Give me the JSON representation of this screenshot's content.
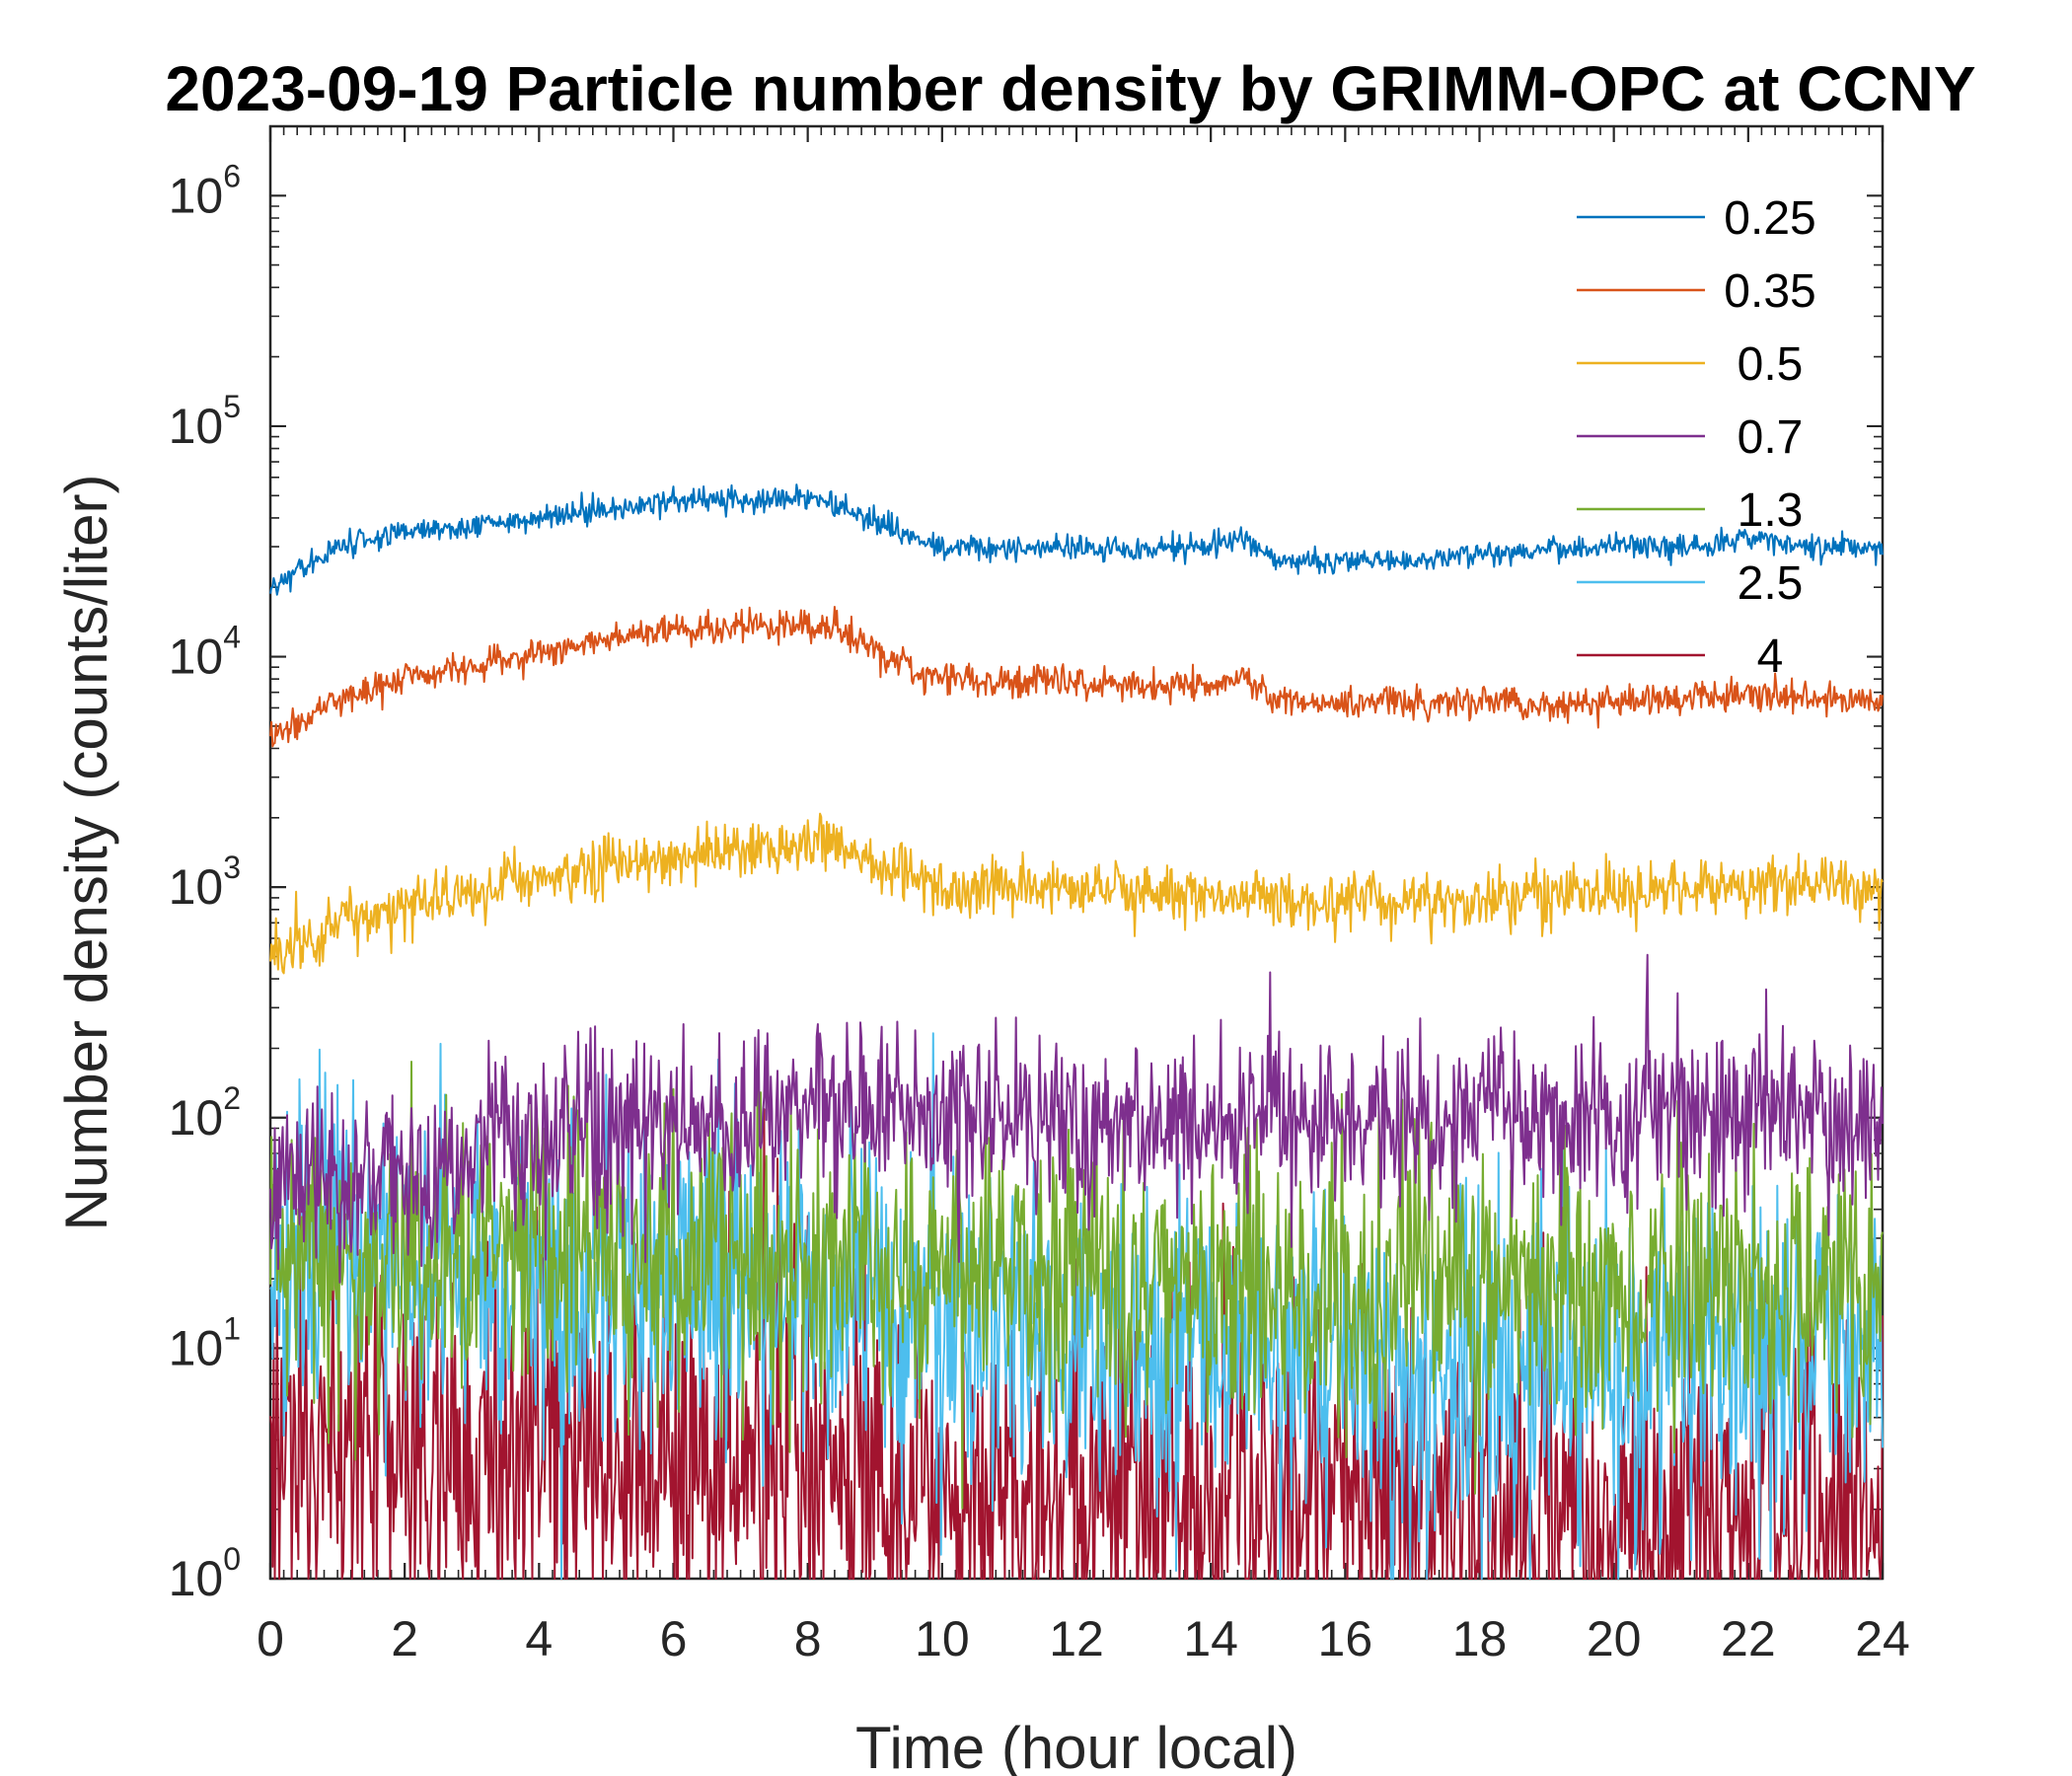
{
  "chart_data": {
    "type": "line",
    "title": "2023-09-19 Particle number density by GRIMM-OPC at CCNY",
    "xlabel": "Time (hour local)",
    "ylabel": "Number density (counts/liter)",
    "xlim": [
      0,
      24
    ],
    "ylim": [
      1,
      2000000
    ],
    "yscale": "log",
    "x_ticks": [
      0,
      2,
      4,
      6,
      8,
      10,
      12,
      14,
      16,
      18,
      20,
      22,
      24
    ],
    "y_ticks": [
      {
        "value": 1,
        "base": "10",
        "exp": "0"
      },
      {
        "value": 10,
        "base": "10",
        "exp": "1"
      },
      {
        "value": 100,
        "base": "10",
        "exp": "2"
      },
      {
        "value": 1000,
        "base": "10",
        "exp": "3"
      },
      {
        "value": 10000,
        "base": "10",
        "exp": "4"
      },
      {
        "value": 100000,
        "base": "10",
        "exp": "5"
      },
      {
        "value": 1000000,
        "base": "10",
        "exp": "6"
      }
    ],
    "legend_position": "top-right",
    "grid": false,
    "series": [
      {
        "name": "0.25",
        "color": "#0072BD",
        "x": [
          0,
          1,
          2,
          3,
          4,
          5,
          6,
          7,
          8,
          8.5,
          9,
          9.5,
          10,
          11,
          12,
          13,
          14,
          14.5,
          15,
          16,
          17,
          18,
          19,
          20,
          21,
          22,
          23,
          24
        ],
        "y": [
          20000,
          30000,
          35000,
          37000,
          40000,
          44000,
          47000,
          48000,
          48000,
          45000,
          38000,
          33000,
          30000,
          29000,
          30000,
          29000,
          30000,
          33000,
          26000,
          26000,
          26000,
          28000,
          29000,
          30000,
          30000,
          32000,
          30000,
          30000
        ],
        "noise": 0.06
      },
      {
        "name": "0.35",
        "color": "#D95319",
        "x": [
          0,
          1,
          2,
          3,
          4,
          5,
          6,
          7,
          8,
          8.5,
          9,
          9.5,
          10,
          11,
          12,
          13,
          14,
          14.5,
          15,
          16,
          17,
          18,
          19,
          20,
          21,
          22,
          23,
          24
        ],
        "y": [
          4500,
          6500,
          8000,
          9000,
          10500,
          12000,
          13000,
          13500,
          13500,
          13000,
          11000,
          9000,
          8000,
          7700,
          7800,
          7500,
          7500,
          8000,
          6500,
          6300,
          6300,
          6500,
          6000,
          6500,
          6500,
          6800,
          6500,
          6500
        ],
        "noise": 0.08
      },
      {
        "name": "0.5",
        "color": "#EDB120",
        "x": [
          0,
          1,
          2,
          3,
          4,
          5,
          6,
          7,
          8,
          8.5,
          9,
          9.5,
          10,
          11,
          12,
          13,
          14,
          15,
          16,
          17,
          18,
          19,
          20,
          21,
          22,
          23,
          24
        ],
        "y": [
          500,
          700,
          800,
          950,
          1100,
          1250,
          1350,
          1450,
          1500,
          1450,
          1250,
          1100,
          1000,
          1000,
          980,
          950,
          920,
          880,
          870,
          880,
          900,
          920,
          950,
          1000,
          1000,
          1050,
          1000
        ],
        "noise": 0.15
      },
      {
        "name": "0.7",
        "color": "#7E2F8E",
        "x": [
          0,
          2,
          4,
          6,
          8,
          10,
          12,
          14,
          16,
          18,
          20,
          22,
          24
        ],
        "y": [
          50,
          60,
          75,
          90,
          105,
          95,
          95,
          95,
          95,
          100,
          100,
          105,
          110
        ],
        "noise": 0.45
      },
      {
        "name": "1.3",
        "color": "#77AC30",
        "x": [
          0,
          2,
          4,
          6,
          8,
          10,
          12,
          14,
          16,
          18,
          20,
          22,
          24
        ],
        "y": [
          25,
          25,
          25,
          25,
          24,
          22,
          20,
          19,
          18,
          18,
          18,
          18,
          18
        ],
        "noise": 0.7
      },
      {
        "name": "2.5",
        "color": "#4DBEEE",
        "x": [
          0,
          2,
          4,
          6,
          8,
          10,
          12,
          14,
          16,
          18,
          20,
          22,
          24
        ],
        "y": [
          25,
          22,
          20,
          18,
          17,
          12,
          10,
          9,
          8,
          9,
          8,
          9,
          9
        ],
        "noise": 0.85
      },
      {
        "name": "4",
        "color": "#A2142F",
        "x": [
          0,
          2,
          4,
          6,
          8,
          10,
          12,
          14,
          16,
          18,
          20,
          22,
          24
        ],
        "y": [
          4,
          4,
          3.5,
          3,
          3,
          2.5,
          2.5,
          2.2,
          2,
          2,
          2,
          2,
          2
        ],
        "noise": 1.0
      }
    ]
  }
}
